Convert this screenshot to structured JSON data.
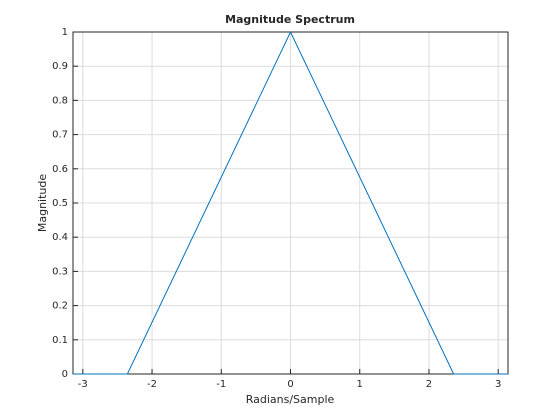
{
  "chart_data": {
    "type": "line",
    "title": "Magnitude Spectrum",
    "xlabel": "Radians/Sample",
    "ylabel": "Magnitude",
    "x": [
      -3.1416,
      -2.3562,
      0,
      2.3562,
      3.1416
    ],
    "series": [
      {
        "color": "#0072bd",
        "values": [
          0,
          0,
          1,
          0,
          0
        ]
      }
    ],
    "xlim": [
      -3.1416,
      3.1416
    ],
    "xticks": [
      -3,
      -2,
      -1,
      0,
      1,
      2,
      3
    ],
    "ylim": [
      0,
      1
    ],
    "yticks": [
      0,
      0.1,
      0.2,
      0.3,
      0.4,
      0.5,
      0.6,
      0.7,
      0.8,
      0.9,
      1
    ],
    "grid": true
  }
}
